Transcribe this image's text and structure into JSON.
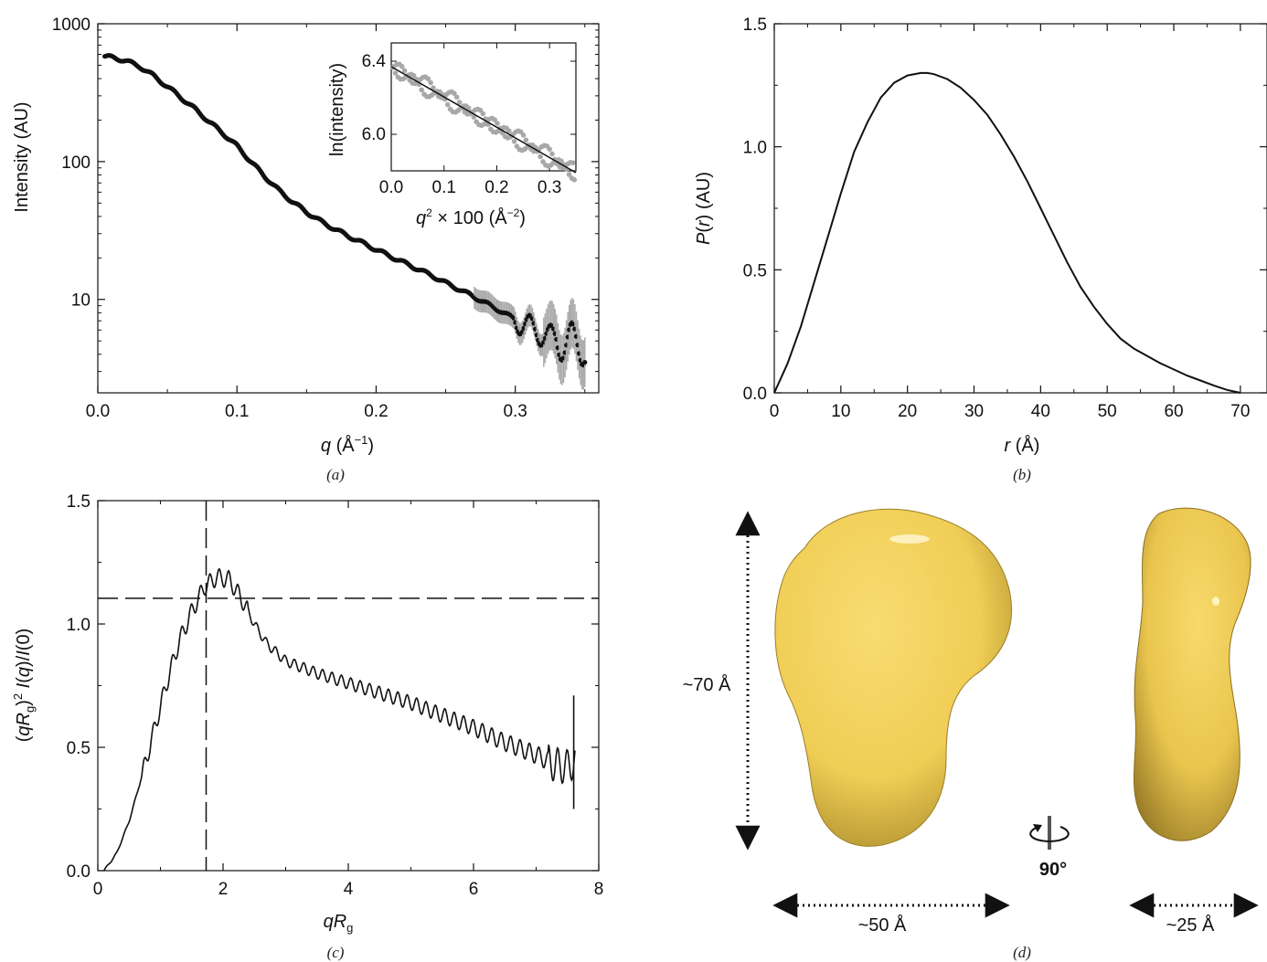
{
  "panels": {
    "a": {
      "caption": "(a)"
    },
    "b": {
      "caption": "(b)"
    },
    "c": {
      "caption": "(c)"
    },
    "d": {
      "caption": "(d)"
    }
  },
  "chart_data": [
    {
      "id": "a",
      "type": "scatter",
      "ylabel": "Intensity (AU)",
      "xlabel": "q (Å−1)",
      "yscale": "log",
      "xlim": [
        0,
        0.36
      ],
      "ylim": [
        2.1,
        1000
      ],
      "xticks": [
        "0.0",
        "0.1",
        "0.2",
        "0.3"
      ],
      "yticks": [
        "10",
        "100",
        "1000"
      ],
      "series": [
        {
          "x": [
            0.005,
            0.01,
            0.02,
            0.03,
            0.04,
            0.05,
            0.06,
            0.07,
            0.08,
            0.09,
            0.1,
            0.11,
            0.12,
            0.13,
            0.14,
            0.15,
            0.16,
            0.17,
            0.18,
            0.19,
            0.2,
            0.21,
            0.22,
            0.23,
            0.24,
            0.25,
            0.26,
            0.27,
            0.28,
            0.29,
            0.3,
            0.31,
            0.32,
            0.33,
            0.34,
            0.35
          ],
          "y": [
            580,
            570,
            540,
            490,
            420,
            350,
            290,
            240,
            195,
            160,
            130,
            100,
            78,
            62,
            51,
            43,
            37,
            32.5,
            28.8,
            25.8,
            23,
            20.6,
            18.5,
            16.6,
            14.9,
            13.2,
            11.8,
            10.5,
            9.3,
            8.2,
            7.2,
            6.3,
            5.6,
            5.1,
            4.9,
            4.6
          ]
        }
      ],
      "inset": {
        "ylabel": "ln(intensity)",
        "xlabel": "q2 × 100 (Å−2)",
        "xlim": [
          0,
          0.35
        ],
        "ylim": [
          5.8,
          6.5
        ],
        "xticks": [
          "0.0",
          "0.1",
          "0.2",
          "0.3"
        ],
        "yticks": [
          "6.0",
          "6.4"
        ],
        "fit": {
          "x": [
            0,
            0.35
          ],
          "y": [
            6.37,
            5.79
          ]
        }
      }
    },
    {
      "id": "b",
      "type": "line",
      "ylabel": "P(r) (AU)",
      "xlabel": "r (Å)",
      "xlim": [
        0,
        74
      ],
      "ylim": [
        0,
        1.5
      ],
      "xticks": [
        "0",
        "10",
        "20",
        "30",
        "40",
        "50",
        "60",
        "70"
      ],
      "yticks": [
        "0.0",
        "0.5",
        "1.0",
        "1.5"
      ],
      "series": [
        {
          "x": [
            0,
            2,
            4,
            6,
            8,
            10,
            12,
            14,
            16,
            18,
            20,
            22,
            23,
            24,
            26,
            28,
            30,
            32,
            34,
            36,
            38,
            40,
            42,
            44,
            46,
            48,
            50,
            52,
            54,
            56,
            58,
            60,
            62,
            64,
            66,
            68,
            70
          ],
          "y": [
            0,
            0.12,
            0.27,
            0.45,
            0.63,
            0.81,
            0.98,
            1.1,
            1.2,
            1.26,
            1.29,
            1.3,
            1.3,
            1.295,
            1.275,
            1.24,
            1.19,
            1.13,
            1.05,
            0.96,
            0.86,
            0.75,
            0.64,
            0.53,
            0.43,
            0.35,
            0.28,
            0.22,
            0.18,
            0.15,
            0.12,
            0.095,
            0.07,
            0.05,
            0.03,
            0.012,
            0
          ]
        }
      ]
    },
    {
      "id": "c",
      "type": "line",
      "ylabel": "(qRg)2 I(q)/I(0)",
      "xlabel": "qRg",
      "xlim": [
        0,
        8
      ],
      "ylim": [
        0,
        1.5
      ],
      "xticks": [
        "0",
        "2",
        "4",
        "6",
        "8"
      ],
      "yticks": [
        "0.0",
        "0.5",
        "1.0",
        "1.5"
      ],
      "reference_lines": {
        "x": 1.73,
        "y": 1.104
      },
      "series": [
        {
          "x": [
            0.1,
            0.3,
            0.5,
            0.7,
            0.9,
            1.1,
            1.3,
            1.5,
            1.7,
            1.9,
            2.1,
            2.3,
            2.5,
            2.7,
            3.0,
            3.5,
            4.0,
            4.5,
            5.0,
            5.5,
            6.0,
            6.5,
            7.0,
            7.3,
            7.5,
            7.62
          ],
          "y": [
            0.0,
            0.07,
            0.2,
            0.38,
            0.57,
            0.76,
            0.93,
            1.05,
            1.15,
            1.19,
            1.18,
            1.1,
            1.0,
            0.92,
            0.85,
            0.8,
            0.76,
            0.72,
            0.68,
            0.63,
            0.58,
            0.52,
            0.47,
            0.43,
            0.42,
            0.45
          ]
        }
      ]
    }
  ],
  "model": {
    "height_label": "~70 Å",
    "width_label": "~50 Å",
    "depth_label": "~25 Å",
    "rotation_label": "90°",
    "surface_color": "#f2d15c"
  }
}
